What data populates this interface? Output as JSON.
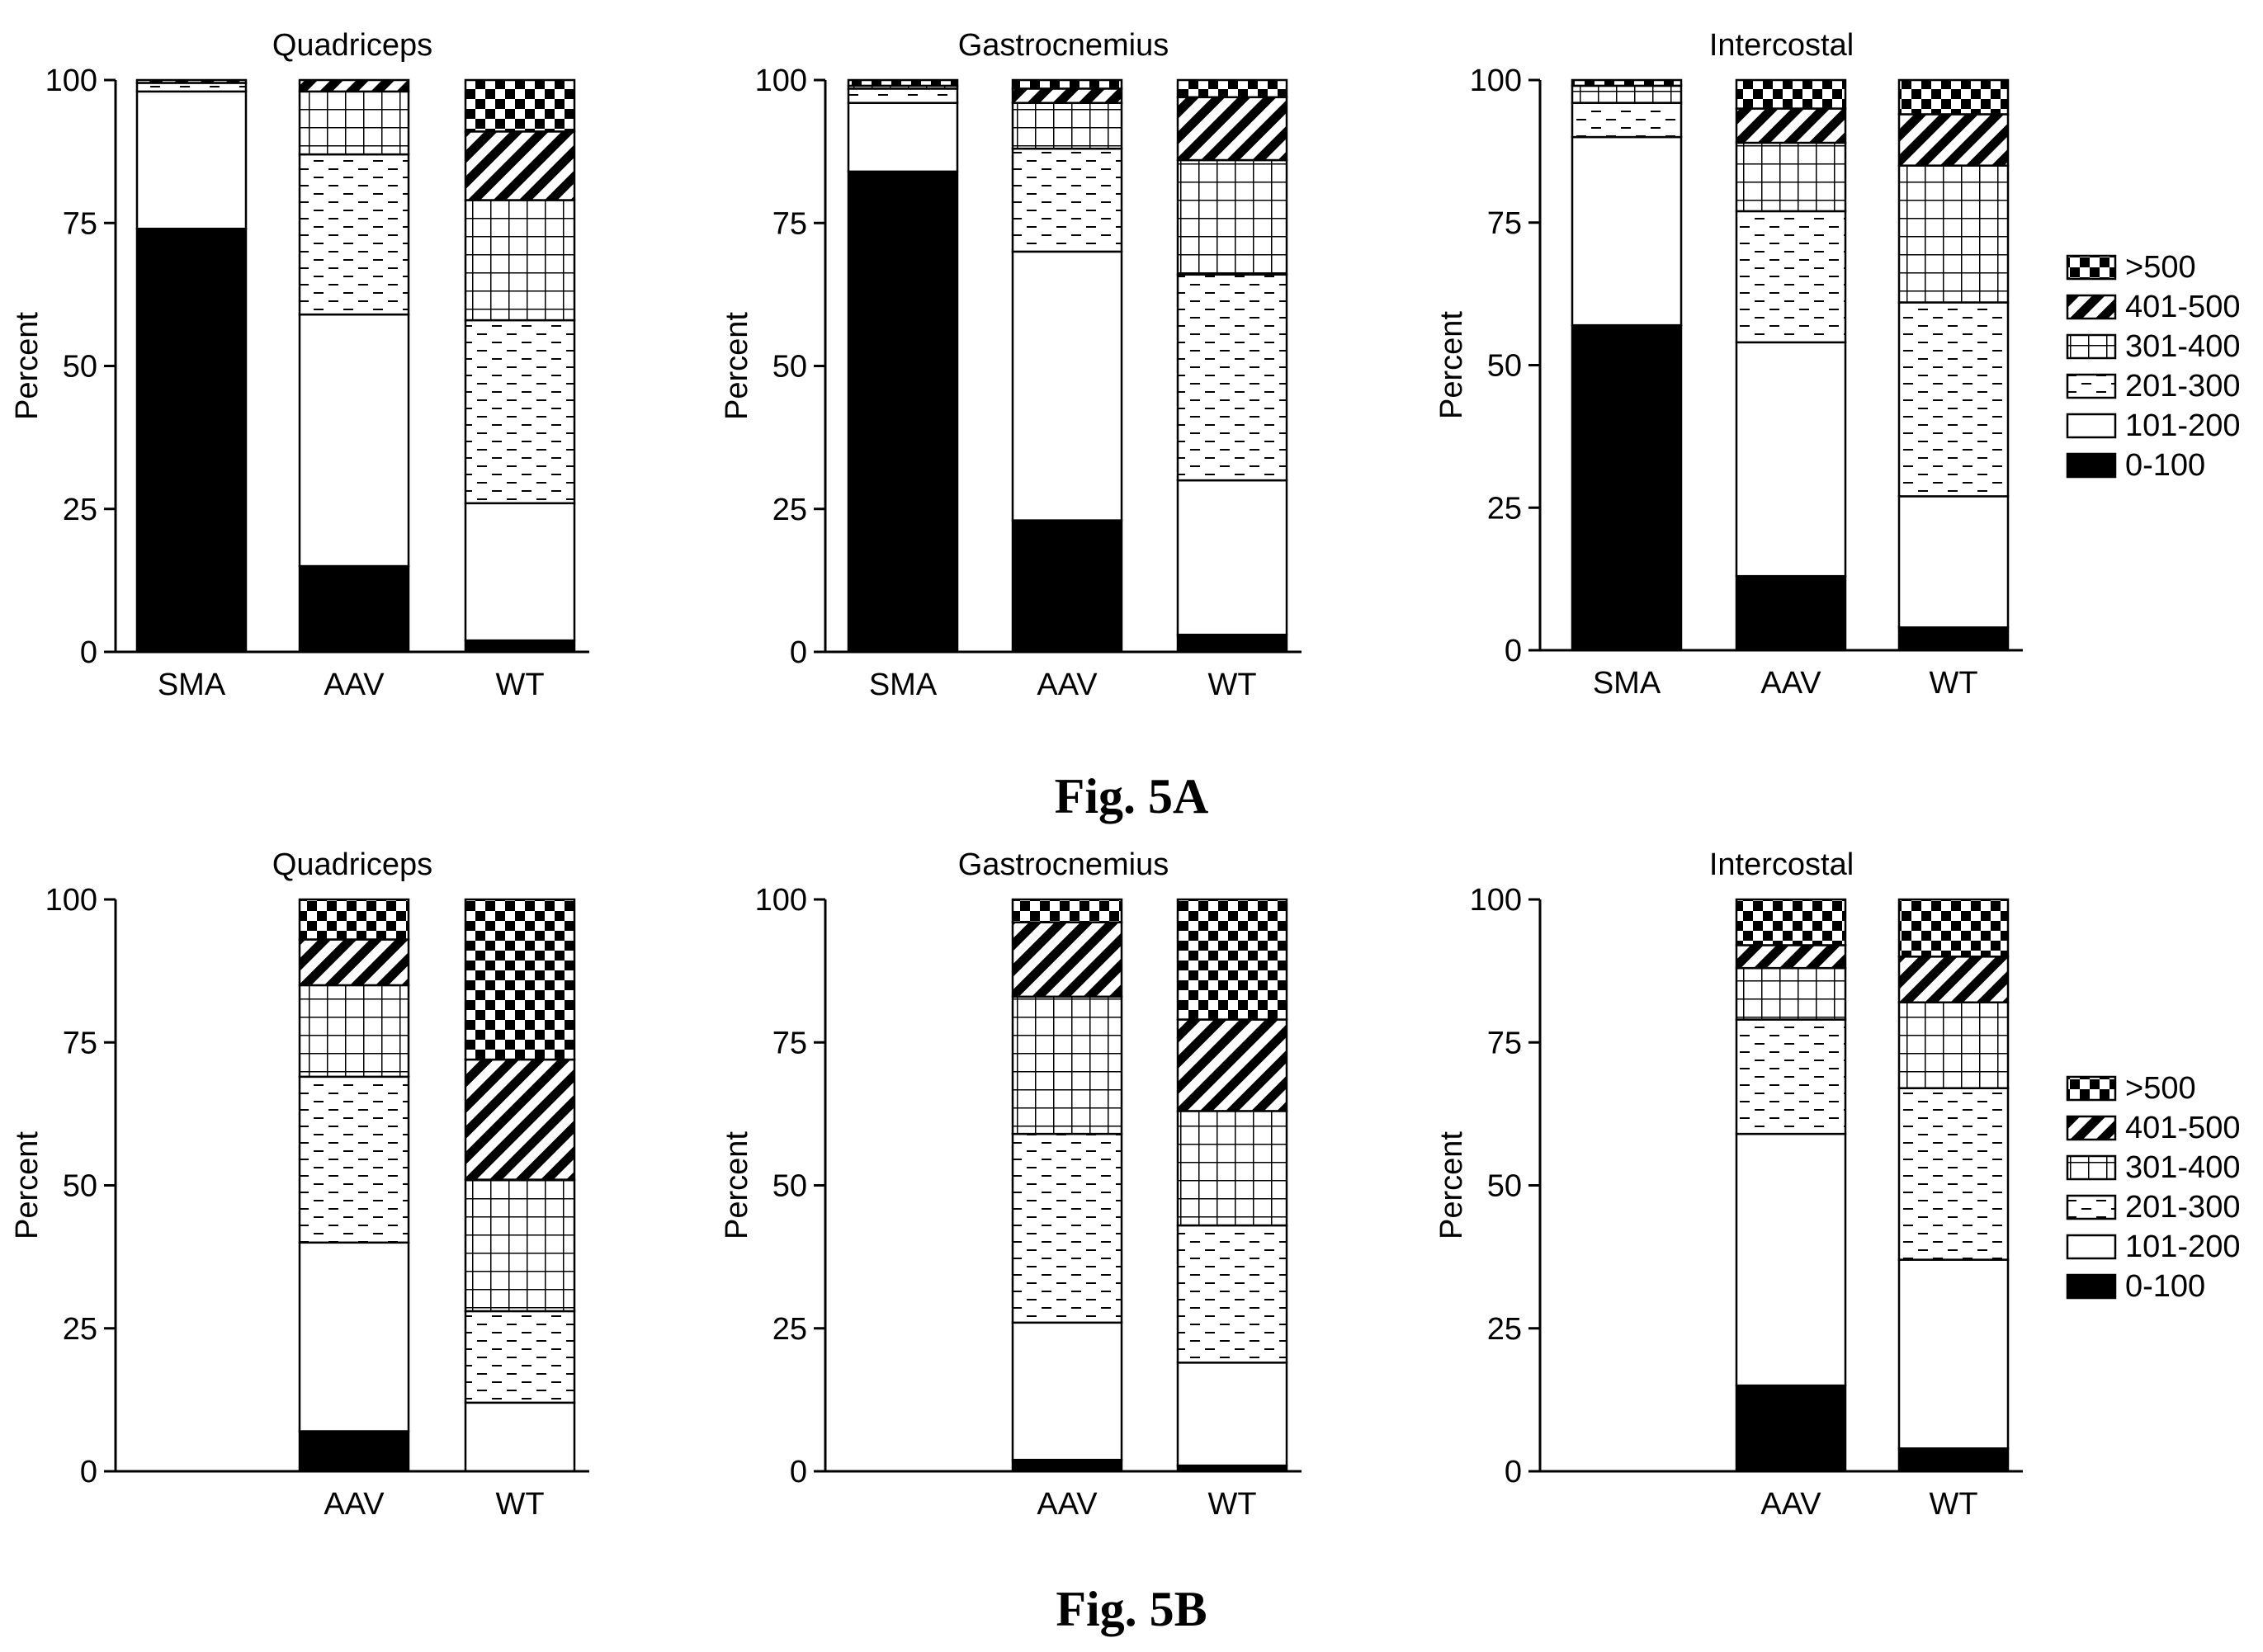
{
  "figure_labels": [
    "Fig. 5A",
    "Fig. 5B"
  ],
  "legend": [
    {
      "label": ">500",
      "pattern": "checker"
    },
    {
      "label": "401-500",
      "pattern": "diag"
    },
    {
      "label": "301-400",
      "pattern": "grid"
    },
    {
      "label": "201-300",
      "pattern": "dash"
    },
    {
      "label": "101-200",
      "pattern": "white"
    },
    {
      "label": "0-100",
      "pattern": "black"
    }
  ],
  "colors": {
    "fill_dark": "#000000",
    "background": "#ffffff"
  },
  "chart_data": [
    {
      "type": "bar",
      "stacked": true,
      "figure": "Fig. 5A",
      "title": "Quadriceps",
      "ylabel": "Percent",
      "ylim": [
        0,
        100
      ],
      "yticks": [
        0,
        25,
        50,
        75,
        100
      ],
      "categories": [
        "SMA",
        "AAV",
        "WT"
      ],
      "series": [
        {
          "name": "0-100",
          "values": [
            74,
            15,
            2
          ]
        },
        {
          "name": "101-200",
          "values": [
            24,
            44,
            24
          ]
        },
        {
          "name": "201-300",
          "values": [
            1.5,
            28,
            32
          ]
        },
        {
          "name": "301-400",
          "values": [
            0,
            11,
            21
          ]
        },
        {
          "name": "401-500",
          "values": [
            0.5,
            2,
            12
          ]
        },
        {
          "name": ">500",
          "values": [
            0,
            0,
            9
          ]
        }
      ]
    },
    {
      "type": "bar",
      "stacked": true,
      "figure": "Fig. 5A",
      "title": "Gastrocnemius",
      "ylabel": "Percent",
      "ylim": [
        0,
        100
      ],
      "yticks": [
        0,
        25,
        50,
        75,
        100
      ],
      "categories": [
        "SMA",
        "AAV",
        "WT"
      ],
      "series": [
        {
          "name": "0-100",
          "values": [
            84,
            23,
            3
          ]
        },
        {
          "name": "101-200",
          "values": [
            12,
            47,
            27
          ]
        },
        {
          "name": "201-300",
          "values": [
            2.5,
            18,
            36
          ]
        },
        {
          "name": "301-400",
          "values": [
            0.5,
            8,
            20
          ]
        },
        {
          "name": "401-500",
          "values": [
            0,
            2.5,
            11
          ]
        },
        {
          "name": ">500",
          "values": [
            1,
            1.5,
            3
          ]
        }
      ]
    },
    {
      "type": "bar",
      "stacked": true,
      "figure": "Fig. 5A",
      "title": "Intercostal",
      "ylabel": "Percent",
      "ylim": [
        0,
        100
      ],
      "yticks": [
        0,
        25,
        50,
        75,
        100
      ],
      "categories": [
        "SMA",
        "AAV",
        "WT"
      ],
      "series": [
        {
          "name": "0-100",
          "values": [
            57,
            13,
            4
          ]
        },
        {
          "name": "101-200",
          "values": [
            33,
            41,
            23
          ]
        },
        {
          "name": "201-300",
          "values": [
            6,
            23,
            34
          ]
        },
        {
          "name": "301-400",
          "values": [
            3,
            12,
            24
          ]
        },
        {
          "name": "401-500",
          "values": [
            0,
            6,
            9
          ]
        },
        {
          "name": ">500",
          "values": [
            1,
            5,
            6
          ]
        }
      ]
    },
    {
      "type": "bar",
      "stacked": true,
      "figure": "Fig. 5B",
      "title": "Quadriceps",
      "ylabel": "Percent",
      "ylim": [
        0,
        100
      ],
      "yticks": [
        0,
        25,
        50,
        75,
        100
      ],
      "categories": [
        "",
        "AAV",
        "WT"
      ],
      "series": [
        {
          "name": "0-100",
          "values": [
            0,
            7,
            0
          ]
        },
        {
          "name": "101-200",
          "values": [
            0,
            33,
            12
          ]
        },
        {
          "name": "201-300",
          "values": [
            0,
            29,
            16
          ]
        },
        {
          "name": "301-400",
          "values": [
            0,
            16,
            23
          ]
        },
        {
          "name": "401-500",
          "values": [
            0,
            8,
            21
          ]
        },
        {
          "name": ">500",
          "values": [
            0,
            7,
            28
          ]
        }
      ]
    },
    {
      "type": "bar",
      "stacked": true,
      "figure": "Fig. 5B",
      "title": "Gastrocnemius",
      "ylabel": "Percent",
      "ylim": [
        0,
        100
      ],
      "yticks": [
        0,
        25,
        50,
        75,
        100
      ],
      "categories": [
        "",
        "AAV",
        "WT"
      ],
      "series": [
        {
          "name": "0-100",
          "values": [
            0,
            2,
            1
          ]
        },
        {
          "name": "101-200",
          "values": [
            0,
            24,
            18
          ]
        },
        {
          "name": "201-300",
          "values": [
            0,
            33,
            24
          ]
        },
        {
          "name": "301-400",
          "values": [
            0,
            24,
            20
          ]
        },
        {
          "name": "401-500",
          "values": [
            0,
            13,
            16
          ]
        },
        {
          "name": ">500",
          "values": [
            0,
            4,
            21
          ]
        }
      ]
    },
    {
      "type": "bar",
      "stacked": true,
      "figure": "Fig. 5B",
      "title": "Intercostal",
      "ylabel": "Percent",
      "ylim": [
        0,
        100
      ],
      "yticks": [
        0,
        25,
        50,
        75,
        100
      ],
      "categories": [
        "",
        "AAV",
        "WT"
      ],
      "series": [
        {
          "name": "0-100",
          "values": [
            0,
            15,
            4
          ]
        },
        {
          "name": "101-200",
          "values": [
            0,
            44,
            33
          ]
        },
        {
          "name": "201-300",
          "values": [
            0,
            20,
            30
          ]
        },
        {
          "name": "301-400",
          "values": [
            0,
            9,
            15
          ]
        },
        {
          "name": "401-500",
          "values": [
            0,
            4,
            8
          ]
        },
        {
          "name": ">500",
          "values": [
            0,
            8,
            10
          ]
        }
      ]
    }
  ]
}
